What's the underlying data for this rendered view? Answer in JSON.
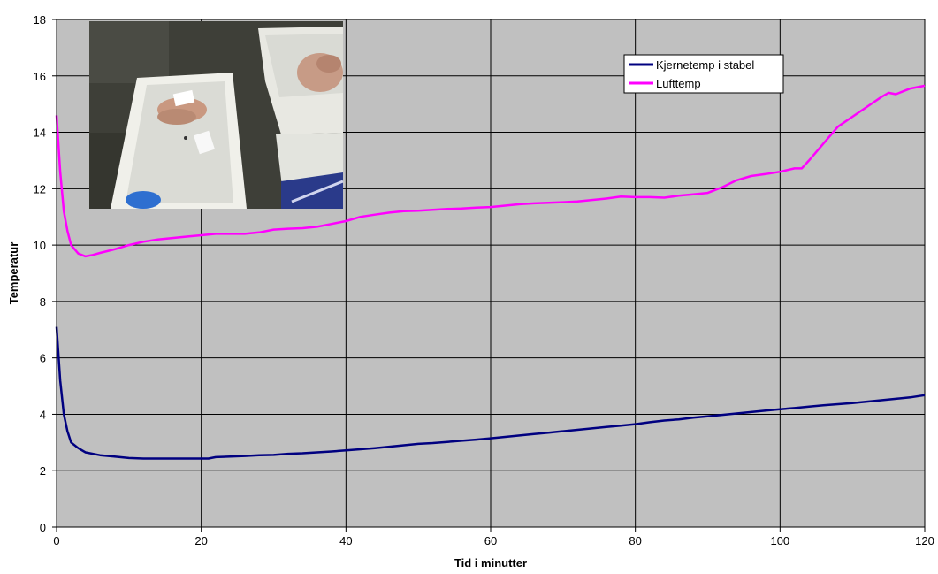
{
  "chart_data": {
    "type": "line",
    "xlabel": "Tid i minutter",
    "ylabel": "Temperatur",
    "xlim": [
      0,
      120
    ],
    "ylim": [
      0,
      18
    ],
    "x_ticks": [
      "0",
      "20",
      "40",
      "60",
      "80",
      "100",
      "120"
    ],
    "y_ticks": [
      "0",
      "2",
      "4",
      "6",
      "8",
      "10",
      "12",
      "14",
      "16",
      "18"
    ],
    "grid": true,
    "plot_background": "#c0c0c0",
    "legend_position": "top-right",
    "series": [
      {
        "name": "Kjernetemp i stabel",
        "color": "#000080",
        "x": [
          0,
          0.5,
          1,
          1.5,
          2,
          3,
          4,
          6,
          8,
          10,
          12,
          14,
          16,
          18,
          20,
          21,
          22,
          24,
          26,
          28,
          30,
          32,
          34,
          36,
          38,
          40,
          42,
          44,
          46,
          48,
          50,
          52,
          54,
          56,
          58,
          60,
          62,
          64,
          66,
          68,
          70,
          72,
          74,
          76,
          78,
          80,
          82,
          84,
          86,
          88,
          90,
          92,
          94,
          96,
          98,
          100,
          102,
          104,
          106,
          108,
          110,
          112,
          114,
          116,
          118,
          120
        ],
        "y": [
          7.1,
          5.2,
          4.0,
          3.4,
          3.0,
          2.8,
          2.65,
          2.55,
          2.5,
          2.45,
          2.43,
          2.43,
          2.43,
          2.43,
          2.43,
          2.43,
          2.48,
          2.5,
          2.52,
          2.55,
          2.56,
          2.6,
          2.62,
          2.65,
          2.68,
          2.72,
          2.76,
          2.8,
          2.85,
          2.9,
          2.95,
          2.98,
          3.02,
          3.06,
          3.1,
          3.15,
          3.2,
          3.25,
          3.3,
          3.35,
          3.4,
          3.45,
          3.5,
          3.55,
          3.6,
          3.65,
          3.72,
          3.78,
          3.82,
          3.88,
          3.93,
          3.98,
          4.03,
          4.08,
          4.13,
          4.18,
          4.22,
          4.27,
          4.32,
          4.36,
          4.4,
          4.45,
          4.5,
          4.55,
          4.6,
          4.68
        ]
      },
      {
        "name": "Lufttemp",
        "color": "#ff00ff",
        "x": [
          0,
          0.5,
          1,
          1.5,
          2,
          3,
          4,
          5,
          6,
          8,
          10,
          12,
          14,
          16,
          18,
          20,
          22,
          24,
          26,
          28,
          30,
          32,
          34,
          36,
          38,
          40,
          42,
          44,
          46,
          48,
          50,
          52,
          54,
          56,
          58,
          60,
          62,
          64,
          66,
          68,
          70,
          72,
          74,
          76,
          78,
          80,
          82,
          84,
          86,
          88,
          90,
          92,
          94,
          96,
          98,
          100,
          102,
          103,
          104,
          106,
          108,
          110,
          112,
          114,
          115,
          116,
          118,
          120
        ],
        "y": [
          14.6,
          12.6,
          11.2,
          10.5,
          10.0,
          9.7,
          9.6,
          9.65,
          9.72,
          9.85,
          10.0,
          10.12,
          10.2,
          10.25,
          10.3,
          10.35,
          10.4,
          10.4,
          10.4,
          10.45,
          10.55,
          10.58,
          10.6,
          10.65,
          10.75,
          10.85,
          11.0,
          11.08,
          11.15,
          11.2,
          11.22,
          11.25,
          11.28,
          11.3,
          11.33,
          11.35,
          11.4,
          11.45,
          11.48,
          11.5,
          11.52,
          11.55,
          11.6,
          11.65,
          11.72,
          11.7,
          11.7,
          11.68,
          11.75,
          11.8,
          11.85,
          12.05,
          12.3,
          12.45,
          12.52,
          12.6,
          12.72,
          12.72,
          13.0,
          13.6,
          14.2,
          14.55,
          14.9,
          15.25,
          15.4,
          15.35,
          15.55,
          15.65
        ]
      }
    ]
  }
}
